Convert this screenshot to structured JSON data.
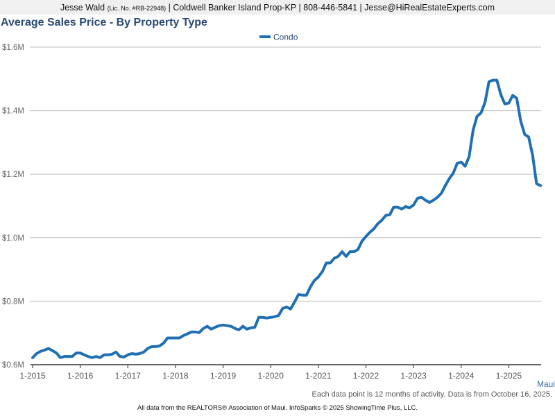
{
  "header": {
    "agent_name": "Jesse Wald",
    "license": "(Lic. No. #RB-22948)",
    "company": "Coldwell Banker Island Prop-KP",
    "phone": "808-446-5841",
    "email": "Jesse@HiRealEstateExperts.com",
    "separator": "|"
  },
  "area_label": "Maui",
  "note": "Each data point is 12 months of activity. Data is from October 16, 2025.",
  "footer": "All data from the REALTORS® Association of Maui. InfoSparks © 2025 ShowingTime Plus, LLC.",
  "colors": {
    "series": "#1f6fb5",
    "title": "#2a4a73",
    "grid": "#c0c0c0",
    "axis": "#666666"
  },
  "chart_data": {
    "type": "line",
    "title": "Average Sales Price - By Property Type",
    "xlabel": "",
    "ylabel": "",
    "ylim": [
      0.6,
      1.6
    ],
    "y_ticks": [
      0.6,
      0.8,
      1.0,
      1.2,
      1.4,
      1.6
    ],
    "y_tick_labels": [
      "$0.6M",
      "$0.8M",
      "$1.0M",
      "$1.2M",
      "$1.4M",
      "$1.6M"
    ],
    "x_start": "1-2015",
    "x_ticks": [
      "1-2015",
      "1-2016",
      "1-2017",
      "1-2018",
      "1-2019",
      "1-2020",
      "1-2021",
      "1-2022",
      "1-2023",
      "1-2024",
      "1-2025"
    ],
    "x_unit": "months since 1-2015",
    "grid": "horizontal",
    "legend": "top-center",
    "series": [
      {
        "name": "Condo",
        "values": [
          0.622,
          0.635,
          0.642,
          0.646,
          0.651,
          0.644,
          0.637,
          0.622,
          0.626,
          0.626,
          0.626,
          0.637,
          0.637,
          0.631,
          0.626,
          0.622,
          0.626,
          0.622,
          0.631,
          0.631,
          0.633,
          0.64,
          0.626,
          0.624,
          0.631,
          0.635,
          0.633,
          0.635,
          0.64,
          0.651,
          0.657,
          0.657,
          0.659,
          0.668,
          0.684,
          0.684,
          0.684,
          0.684,
          0.692,
          0.697,
          0.703,
          0.703,
          0.701,
          0.714,
          0.721,
          0.712,
          0.718,
          0.723,
          0.725,
          0.723,
          0.721,
          0.714,
          0.71,
          0.721,
          0.712,
          0.716,
          0.718,
          0.749,
          0.749,
          0.747,
          0.749,
          0.751,
          0.755,
          0.777,
          0.782,
          0.775,
          0.797,
          0.821,
          0.819,
          0.819,
          0.845,
          0.865,
          0.876,
          0.893,
          0.92,
          0.92,
          0.935,
          0.941,
          0.956,
          0.941,
          0.956,
          0.956,
          0.963,
          0.989,
          1.004,
          1.017,
          1.028,
          1.044,
          1.055,
          1.07,
          1.072,
          1.096,
          1.096,
          1.09,
          1.098,
          1.094,
          1.103,
          1.124,
          1.127,
          1.118,
          1.111,
          1.118,
          1.127,
          1.14,
          1.164,
          1.186,
          1.203,
          1.234,
          1.238,
          1.225,
          1.255,
          1.338,
          1.382,
          1.393,
          1.426,
          1.491,
          1.496,
          1.496,
          1.45,
          1.421,
          1.424,
          1.448,
          1.439,
          1.367,
          1.325,
          1.317,
          1.26,
          1.17,
          1.164
        ]
      }
    ]
  }
}
